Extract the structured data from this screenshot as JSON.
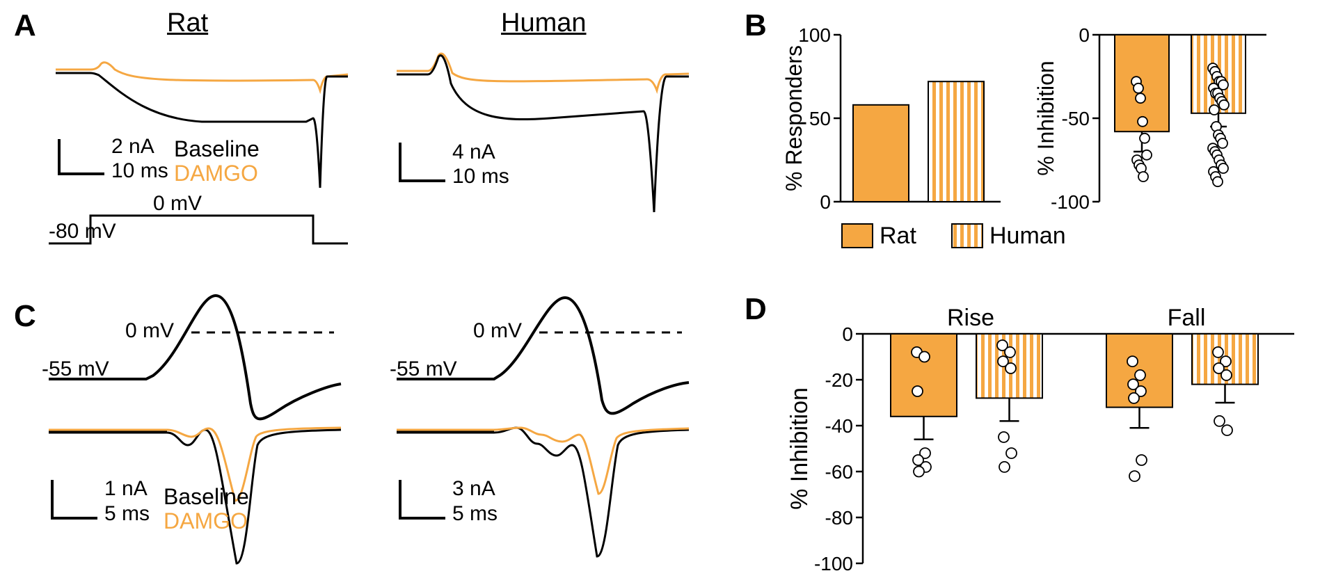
{
  "colors": {
    "orange": "#f5a742",
    "black": "#000000",
    "white": "#ffffff"
  },
  "labels": {
    "A": "A",
    "B": "B",
    "C": "C",
    "D": "D",
    "rat": "Rat",
    "human": "Human",
    "baseline": "Baseline",
    "damgo": "DAMGO",
    "zero_mv": "0 mV",
    "neg80_mv": "-80 mV",
    "neg55_mv": "-55 mV",
    "rise": "Rise",
    "fall": "Fall"
  },
  "scaleA_rat": {
    "y": "2 nA",
    "x": "10 ms"
  },
  "scaleA_human": {
    "y": "4 nA",
    "x": "10 ms"
  },
  "scaleC_rat": {
    "y": "1 nA",
    "x": "5 ms"
  },
  "scaleC_human": {
    "y": "3 nA",
    "x": "5 ms"
  },
  "panelB_responders": {
    "type": "bar",
    "ylabel": "% Responders",
    "ylim": [
      0,
      100
    ],
    "yticks": [
      0,
      50,
      100
    ],
    "bars": [
      {
        "label": "Rat",
        "value": 58,
        "fill": "solid"
      },
      {
        "label": "Human",
        "value": 72,
        "fill": "striped"
      }
    ],
    "legend": [
      {
        "label": "Rat",
        "fill": "solid"
      },
      {
        "label": "Human",
        "fill": "striped"
      }
    ]
  },
  "panelB_inhibition": {
    "type": "bar_scatter",
    "ylabel": "% Inhibition",
    "ylim": [
      -100,
      0
    ],
    "yticks": [
      0,
      -50,
      -100
    ],
    "bars": [
      {
        "label": "Rat",
        "value": -58,
        "err": 12,
        "fill": "solid",
        "points": [
          -28,
          -32,
          -38,
          -52,
          -62,
          -72,
          -75,
          -78,
          -80,
          -85
        ]
      },
      {
        "label": "Human",
        "value": -47,
        "err": 8,
        "fill": "striped",
        "points": [
          -20,
          -22,
          -25,
          -28,
          -28,
          -30,
          -32,
          -35,
          -35,
          -38,
          -40,
          -42,
          -45,
          -55,
          -60,
          -62,
          -65,
          -68,
          -70,
          -72,
          -75,
          -78,
          -80,
          -82,
          -85,
          -88
        ]
      }
    ]
  },
  "panelD": {
    "type": "bar_scatter",
    "ylabel": "% Inhibition",
    "ylim": [
      -100,
      0
    ],
    "yticks": [
      0,
      -20,
      -40,
      -60,
      -80,
      -100
    ],
    "groups": [
      "Rise",
      "Fall"
    ],
    "bars": [
      {
        "group": "Rise",
        "label": "Rat",
        "value": -36,
        "err": 10,
        "fill": "solid",
        "points": [
          -8,
          -10,
          -25,
          -52,
          -55,
          -58,
          -60
        ]
      },
      {
        "group": "Rise",
        "label": "Human",
        "value": -28,
        "err": 10,
        "fill": "striped",
        "points": [
          -5,
          -8,
          -12,
          -15,
          -45,
          -52,
          -58
        ]
      },
      {
        "group": "Fall",
        "label": "Rat",
        "value": -32,
        "err": 9,
        "fill": "solid",
        "points": [
          -12,
          -18,
          -22,
          -25,
          -28,
          -55,
          -62
        ]
      },
      {
        "group": "Fall",
        "label": "Human",
        "value": -22,
        "err": 8,
        "fill": "striped",
        "points": [
          -8,
          -12,
          -15,
          -18,
          -38,
          -42
        ]
      }
    ]
  },
  "font": {
    "panel_label": 44,
    "title": 38,
    "axis": 32,
    "tick": 28,
    "legend": 32,
    "scale": 30
  }
}
